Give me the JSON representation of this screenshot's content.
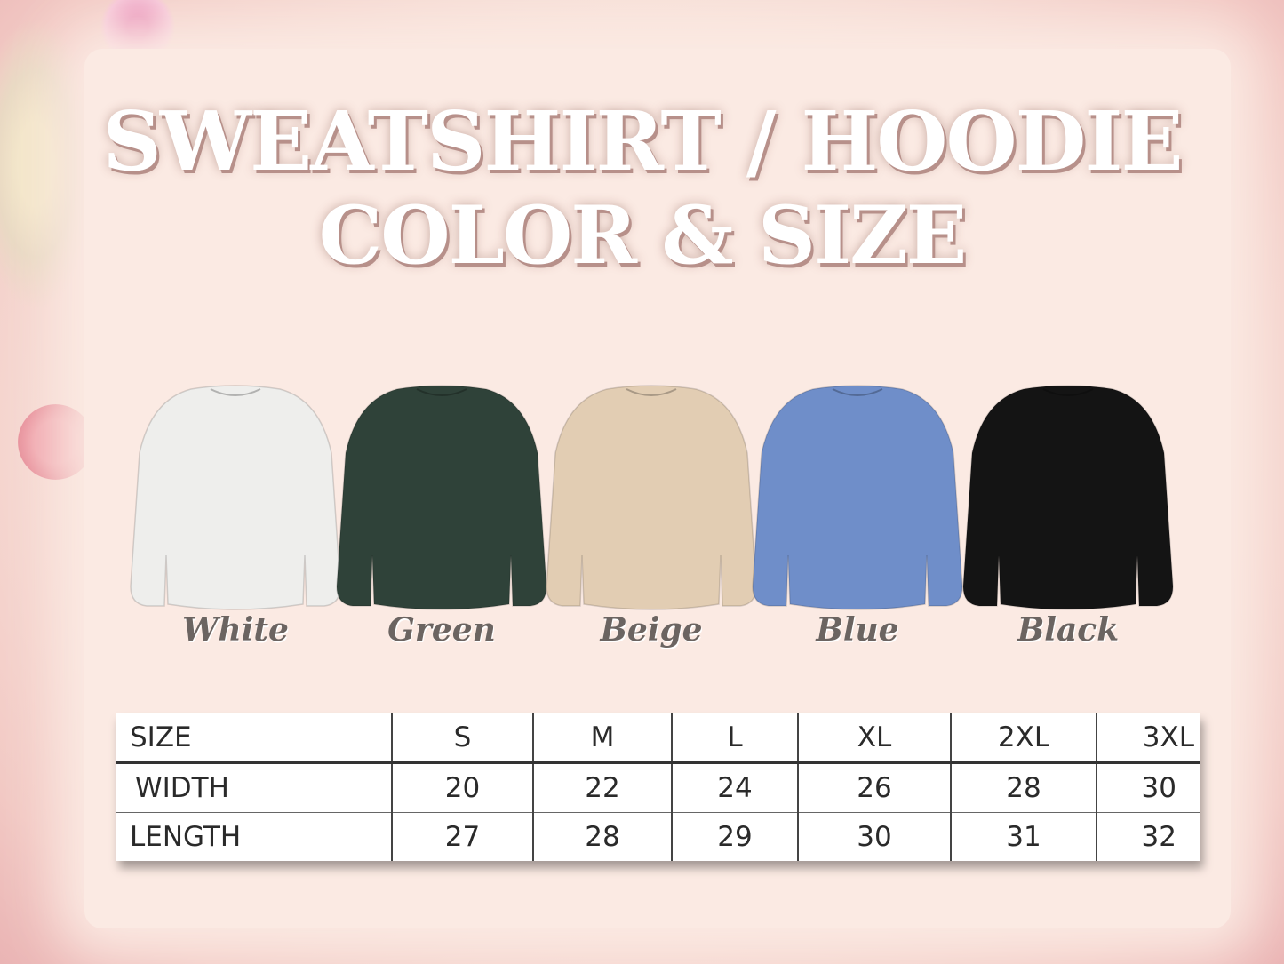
{
  "title": {
    "line1": "SWEATSHIRT / HOODIE",
    "line2": "COLOR & SIZE"
  },
  "colors": [
    {
      "label": "White",
      "hex": "#eeeeec"
    },
    {
      "label": "Green",
      "hex": "#2f4239"
    },
    {
      "label": "Beige",
      "hex": "#e2cdb3"
    },
    {
      "label": "Blue",
      "hex": "#6f8ec9"
    },
    {
      "label": "Black",
      "hex": "#141414"
    }
  ],
  "size_table": {
    "headers": [
      "SIZE",
      "S",
      "M",
      "L",
      "XL",
      "2XL",
      "3XL"
    ],
    "rows": [
      [
        "WIDTH",
        "20",
        "22",
        "24",
        "26",
        "28",
        "30"
      ],
      [
        "LENGTH",
        "27",
        "28",
        "29",
        "30",
        "31",
        "32"
      ]
    ]
  }
}
